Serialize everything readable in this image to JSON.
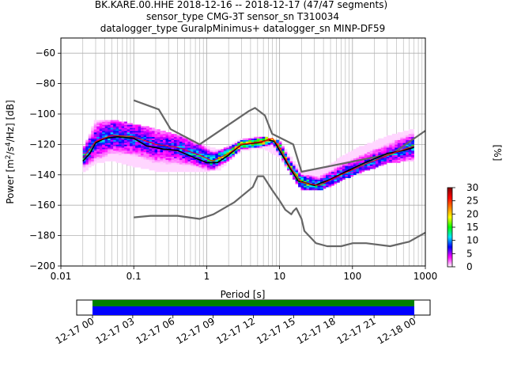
{
  "title": {
    "line1": "BK.KARE.00.HHE   2018-12-16 -- 2018-12-17  (47/47 segments)",
    "line2": "sensor_type CMG-3T sensor_sn T310034",
    "line3": "datalogger_type GuralpMinimus+ datalogger_sn MINP-DF59"
  },
  "chart_data": [
    {
      "type": "heatmap",
      "subtype": "probabilistic-power-spectral-density",
      "xlabel": "Period [s]",
      "ylabel": "Power [m²/s⁴/Hz] [dB]",
      "xscale": "log",
      "xlim": [
        0.01,
        1000
      ],
      "ylim": [
        -200,
        -50
      ],
      "xticks": [
        0.01,
        0.1,
        1,
        10,
        100,
        1000
      ],
      "xtick_labels": [
        "0.01",
        "0.1",
        "1",
        "10",
        "100",
        "1000"
      ],
      "yticks": [
        -200,
        -180,
        -160,
        -140,
        -120,
        -100,
        -80,
        -60
      ],
      "ytick_labels": [
        "−200",
        "−180",
        "−160",
        "−140",
        "−120",
        "−100",
        "−80",
        "−60"
      ],
      "grid": true,
      "colorbar": {
        "label": "[%]",
        "range": [
          0,
          30
        ],
        "ticks": [
          0,
          5,
          10,
          15,
          20,
          25,
          30
        ],
        "tick_labels": [
          "0",
          "5",
          "10",
          "15",
          "20",
          "25",
          "30"
        ],
        "colormap": [
          "#ffffff",
          "#ff00ff",
          "#0000ff",
          "#00e5ff",
          "#00ff00",
          "#ffff00",
          "#ff8000",
          "#ff0000",
          "#800000"
        ]
      },
      "series": [
        {
          "name": "",
          "role": "new-high-noise-model",
          "color": "#666666",
          "points": [
            [
              0.1,
              -91
            ],
            [
              0.22,
              -97
            ],
            [
              0.32,
              -110
            ],
            [
              0.8,
              -120
            ],
            [
              3.8,
              -98
            ],
            [
              4.6,
              -96
            ],
            [
              6.3,
              -101
            ],
            [
              7.9,
              -113
            ],
            [
              15.4,
              -120
            ],
            [
              20,
              -138
            ],
            [
              354.8,
              -126
            ],
            [
              1000,
              -111
            ]
          ]
        },
        {
          "name": "",
          "role": "new-low-noise-model",
          "color": "#666666",
          "points": [
            [
              0.1,
              -168
            ],
            [
              0.17,
              -167
            ],
            [
              0.4,
              -167
            ],
            [
              0.8,
              -169
            ],
            [
              1.24,
              -166
            ],
            [
              2.4,
              -158
            ],
            [
              4.3,
              -148
            ],
            [
              5,
              -141
            ],
            [
              6,
              -141
            ],
            [
              7.9,
              -150
            ],
            [
              10,
              -157
            ],
            [
              12,
              -163
            ],
            [
              14.5,
              -166
            ],
            [
              15.4,
              -164
            ],
            [
              17,
              -162
            ],
            [
              20,
              -169
            ],
            [
              21.9,
              -177
            ],
            [
              31.6,
              -185
            ],
            [
              45,
              -187
            ],
            [
              70,
              -187
            ],
            [
              101,
              -185
            ],
            [
              154,
              -185
            ],
            [
              328,
              -187
            ],
            [
              600,
              -184
            ],
            [
              1000,
              -178
            ]
          ]
        },
        {
          "name": "",
          "role": "mean-psd",
          "color": "#000000",
          "points": [
            [
              0.02,
              -131
            ],
            [
              0.025,
              -126
            ],
            [
              0.03,
              -119
            ],
            [
              0.04,
              -116
            ],
            [
              0.06,
              -115
            ],
            [
              0.1,
              -116
            ],
            [
              0.15,
              -121
            ],
            [
              0.25,
              -123
            ],
            [
              0.4,
              -124
            ],
            [
              0.7,
              -129
            ],
            [
              1,
              -132
            ],
            [
              1.4,
              -132
            ],
            [
              2,
              -127
            ],
            [
              3,
              -120
            ],
            [
              5,
              -119
            ],
            [
              7,
              -117
            ],
            [
              8.5,
              -118
            ],
            [
              10,
              -124
            ],
            [
              14,
              -136
            ],
            [
              18,
              -144
            ],
            [
              30,
              -147
            ],
            [
              50,
              -143
            ],
            [
              80,
              -138
            ],
            [
              150,
              -132
            ],
            [
              300,
              -126
            ],
            [
              500,
              -124
            ],
            [
              700,
              -122
            ]
          ]
        },
        {
          "name": "",
          "role": "mode-psd",
          "color": "#ff0000",
          "points": [
            [
              0.02,
              -129
            ],
            [
              0.03,
              -118
            ],
            [
              0.05,
              -114
            ],
            [
              0.1,
              -115
            ],
            [
              0.2,
              -120
            ],
            [
              0.4,
              -122
            ],
            [
              0.8,
              -127
            ],
            [
              1.2,
              -131
            ],
            [
              2,
              -126
            ],
            [
              3,
              -120
            ],
            [
              6,
              -118
            ],
            [
              8,
              -116
            ],
            [
              10,
              -122
            ],
            [
              14,
              -135
            ],
            [
              20,
              -145
            ],
            [
              35,
              -147
            ],
            [
              70,
              -140
            ],
            [
              150,
              -133
            ],
            [
              400,
              -125
            ],
            [
              700,
              -121
            ]
          ]
        }
      ],
      "psd_distribution": {
        "note": "coloured probability bins (percent of segments) along the PSD band",
        "band": [
          {
            "period": 0.02,
            "low": -138,
            "high": -124,
            "peak_pct": 12
          },
          {
            "period": 0.03,
            "low": -132,
            "high": -104,
            "peak_pct": 8
          },
          {
            "period": 0.05,
            "low": -130,
            "high": -104,
            "peak_pct": 10
          },
          {
            "period": 0.1,
            "low": -134,
            "high": -107,
            "peak_pct": 9
          },
          {
            "period": 0.2,
            "low": -137,
            "high": -110,
            "peak_pct": 7
          },
          {
            "period": 0.4,
            "low": -138,
            "high": -114,
            "peak_pct": 8
          },
          {
            "period": 0.8,
            "low": -138,
            "high": -120,
            "peak_pct": 10
          },
          {
            "period": 1.5,
            "low": -136,
            "high": -124,
            "peak_pct": 14
          },
          {
            "period": 3,
            "low": -124,
            "high": -117,
            "peak_pct": 22
          },
          {
            "period": 6,
            "low": -122,
            "high": -115,
            "peak_pct": 25
          },
          {
            "period": 10,
            "low": -128,
            "high": -118,
            "peak_pct": 18
          },
          {
            "period": 20,
            "low": -150,
            "high": -138,
            "peak_pct": 15
          },
          {
            "period": 40,
            "low": -149,
            "high": -136,
            "peak_pct": 11
          },
          {
            "period": 100,
            "low": -140,
            "high": -124,
            "peak_pct": 9
          },
          {
            "period": 300,
            "low": -132,
            "high": -115,
            "peak_pct": 8
          },
          {
            "period": 700,
            "low": -130,
            "high": -110,
            "peak_pct": 10
          }
        ]
      }
    },
    {
      "type": "timeline",
      "xtick_labels": [
        "12-17 00",
        "12-17 03",
        "12-17 06",
        "12-17 09",
        "12-17 12",
        "12-17 15",
        "12-17 18",
        "12-17 21",
        "12-18 00"
      ],
      "bars": [
        {
          "name": "",
          "color": "#008000",
          "coverage": [
            0.0,
            1.0
          ]
        },
        {
          "name": "",
          "color": "#0000ff",
          "coverage": [
            0.0,
            1.0
          ]
        }
      ]
    }
  ]
}
